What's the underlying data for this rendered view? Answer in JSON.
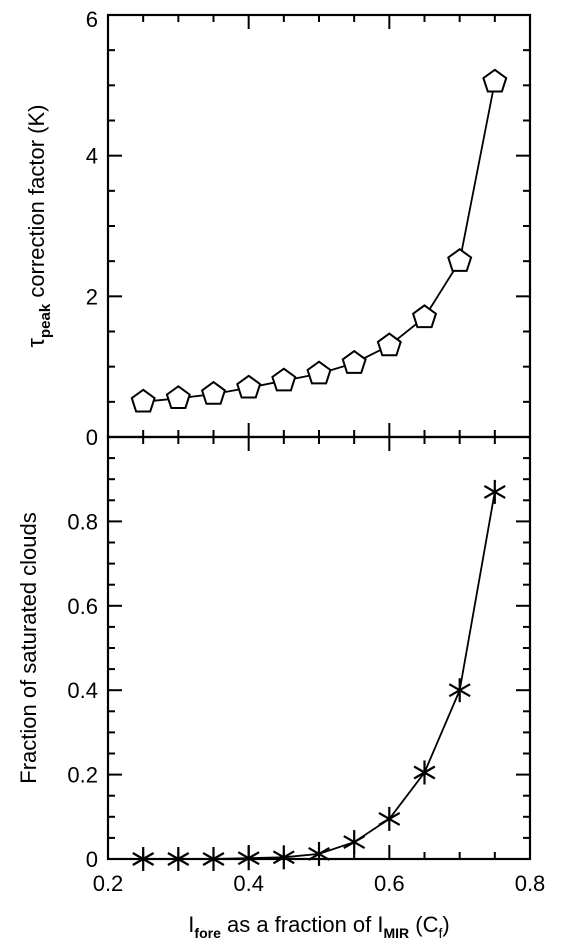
{
  "chart_data": [
    {
      "type": "line",
      "panel": "top",
      "x": [
        0.25,
        0.3,
        0.35,
        0.4,
        0.45,
        0.5,
        0.55,
        0.6,
        0.65,
        0.7,
        0.75
      ],
      "series": [
        {
          "marker": "pentagon",
          "values": [
            0.5,
            0.55,
            0.61,
            0.7,
            0.8,
            0.9,
            1.05,
            1.3,
            1.7,
            2.5,
            5.05
          ]
        }
      ],
      "ylabel_main": "τ",
      "ylabel_sub": "peak",
      "ylabel_rest": " correction factor (K)",
      "xlim": [
        0.2,
        0.8
      ],
      "ylim": [
        0,
        6
      ],
      "yticks_major": [
        "0",
        "2",
        "4",
        "6"
      ],
      "grid": false
    },
    {
      "type": "line",
      "panel": "bottom",
      "x": [
        0.25,
        0.3,
        0.35,
        0.4,
        0.45,
        0.5,
        0.55,
        0.6,
        0.65,
        0.7,
        0.75
      ],
      "series": [
        {
          "marker": "star",
          "values": [
            0.0,
            0.0,
            0.0,
            0.002,
            0.004,
            0.012,
            0.04,
            0.095,
            0.205,
            0.4,
            0.87
          ]
        }
      ],
      "ylabel": "Fraction of saturated clouds",
      "xlim": [
        0.2,
        0.8
      ],
      "ylim": [
        0,
        1.0
      ],
      "xticks_major": [
        "0.2",
        "0.4",
        "0.6",
        "0.8"
      ],
      "yticks_major": [
        "0",
        "0.2",
        "0.4",
        "0.6",
        "0.8"
      ],
      "xlabel_main1": "I",
      "xlabel_sub1": "fore",
      "xlabel_mid": " as a fraction of I",
      "xlabel_sub2": "MIR",
      "xlabel_end1": " (C",
      "xlabel_sub3": "f",
      "xlabel_end2": ")",
      "grid": false
    }
  ]
}
